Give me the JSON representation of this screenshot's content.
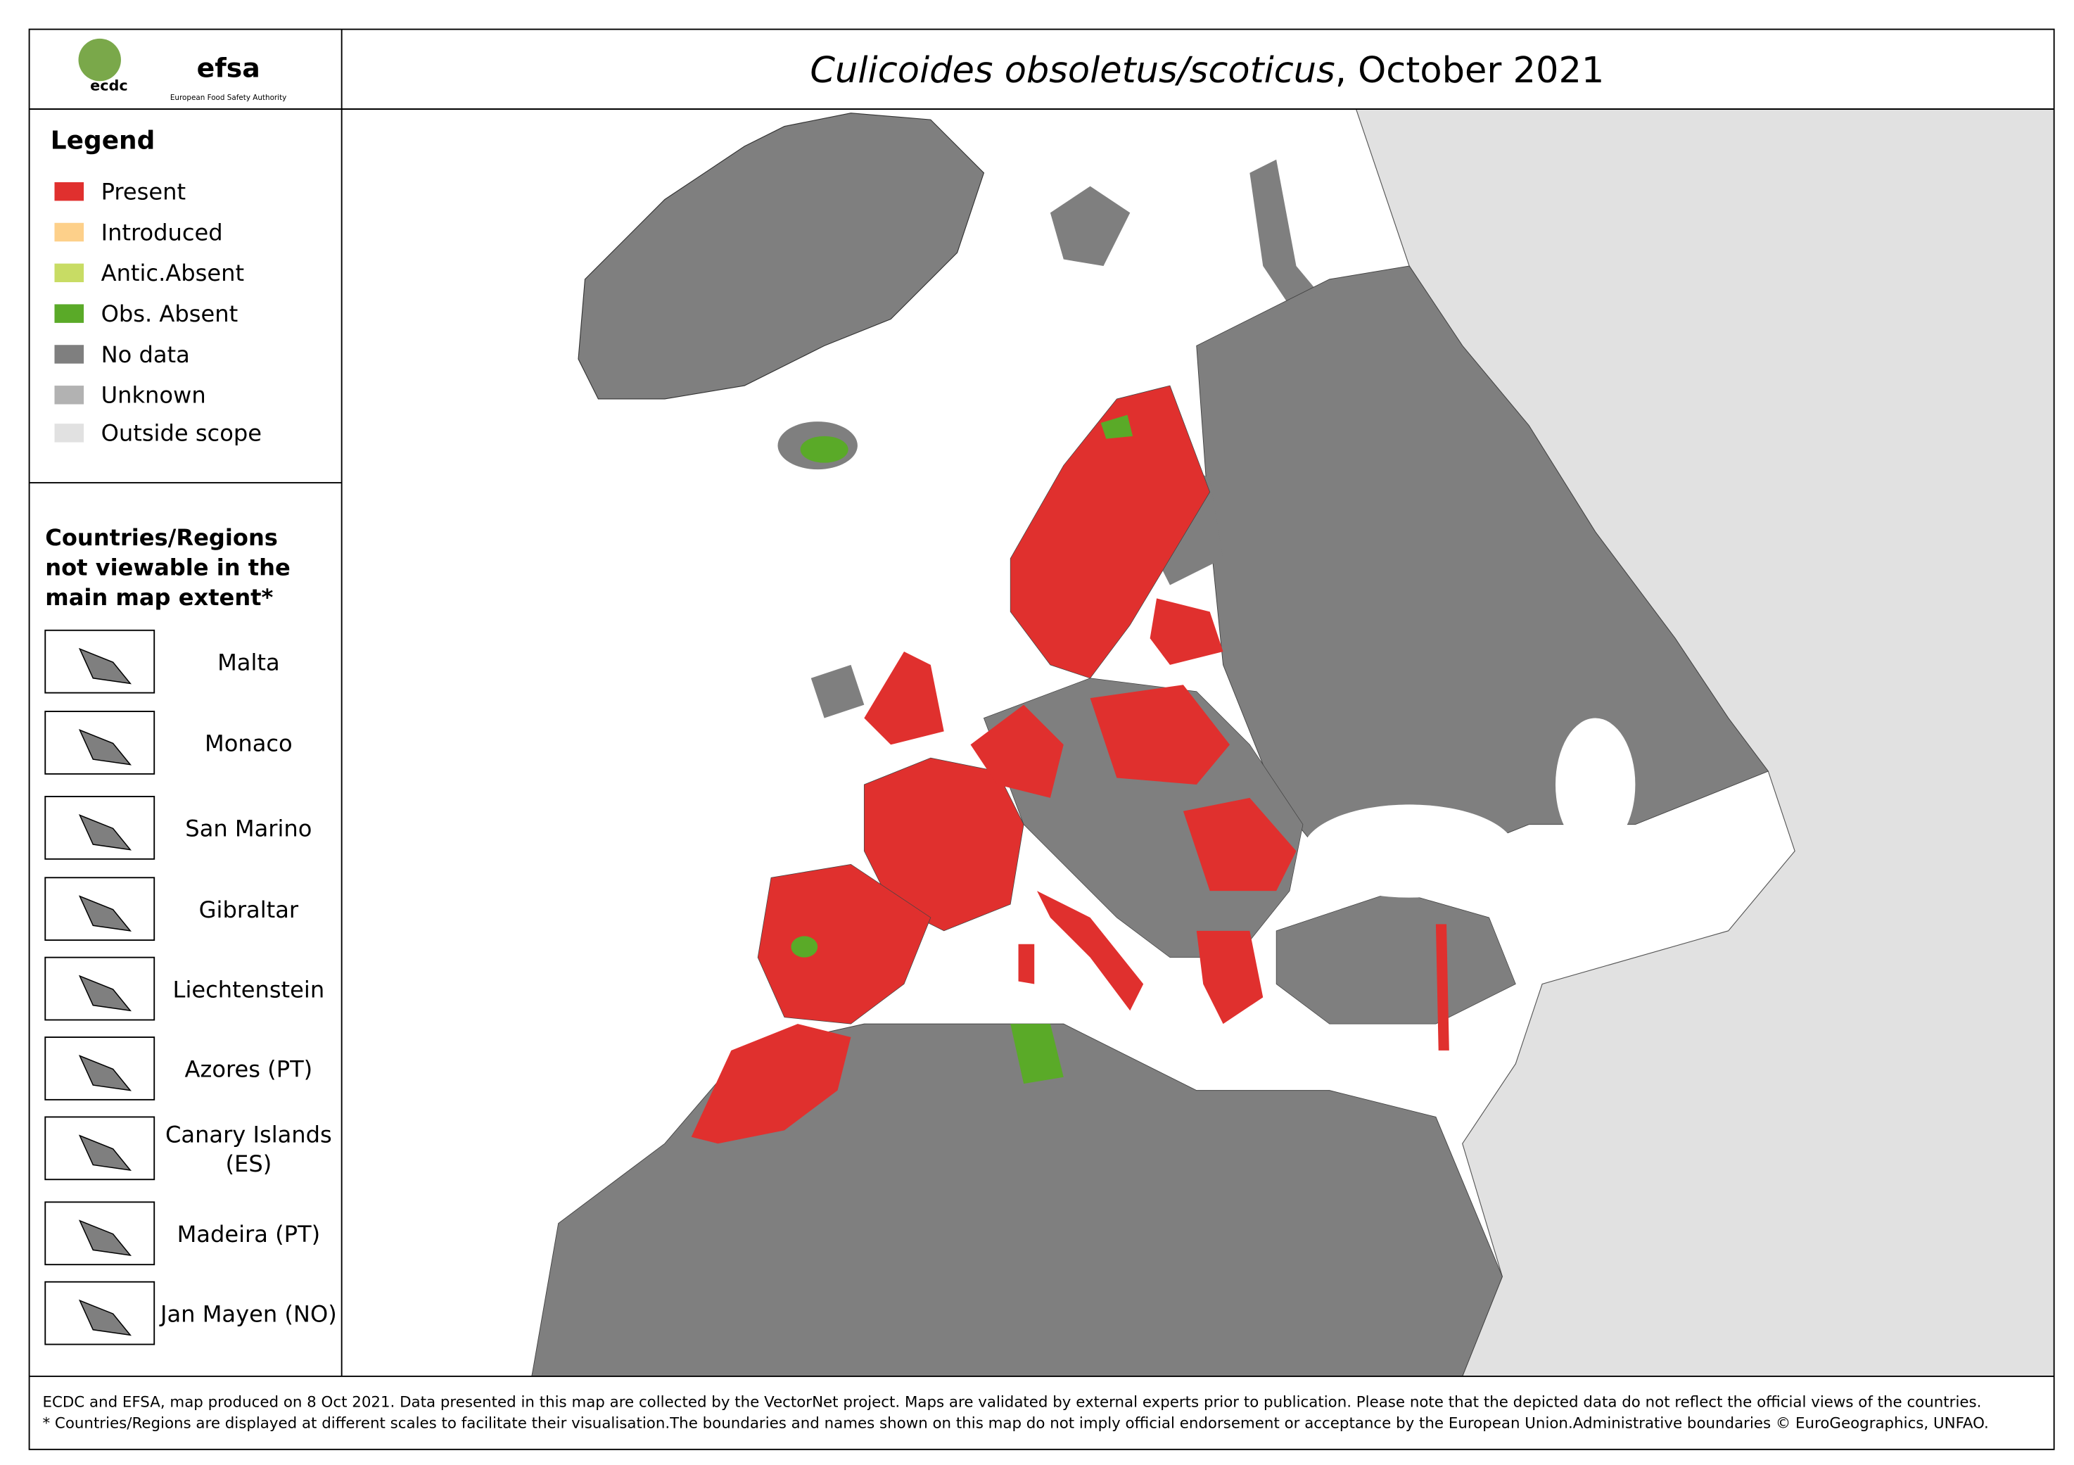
{
  "header": {
    "logo_left": "ecdc",
    "logo_right": "efsa",
    "logo_right_caption": "European Food Safety Authority",
    "title_italic": "Culicoides obsoletus/scoticus",
    "title_rest": ", October 2021"
  },
  "legend": {
    "title": "Legend",
    "items": [
      {
        "label": "Present",
        "color": "#e0302e"
      },
      {
        "label": "Introduced",
        "color": "#fdd08a"
      },
      {
        "label": "Antic.Absent",
        "color": "#c8dc64"
      },
      {
        "label": "Obs. Absent",
        "color": "#5aaa28"
      },
      {
        "label": "No data",
        "color": "#7f7f7f"
      },
      {
        "label": "Unknown",
        "color": "#b2b2b2"
      },
      {
        "label": "Outside scope",
        "color": "#e1e1e1"
      }
    ]
  },
  "insets": {
    "title": [
      "Countries/Regions",
      "not viewable in the",
      "main map extent*"
    ],
    "items": [
      [
        "Malta"
      ],
      [
        "Monaco"
      ],
      [
        "San Marino"
      ],
      [
        "Gibraltar"
      ],
      [
        "Liechtenstein"
      ],
      [
        "Azores (PT)"
      ],
      [
        "Canary Islands",
        "(ES)"
      ],
      [
        "Madeira (PT)"
      ],
      [
        "Jan Mayen (NO)"
      ]
    ]
  },
  "footer": [
    "ECDC and EFSA, map produced on 8 Oct 2021. Data presented in this map are collected by the VectorNet project. Maps are validated by external experts prior to publication. Please note that the depicted data do not reflect the official views of the countries.",
    "* Countries/Regions are displayed at different scales to facilitate their visualisation.The boundaries and names shown on this map do not imply official endorsement or acceptance by the European Union.Administrative boundaries © EuroGeographics, UNFAO."
  ]
}
